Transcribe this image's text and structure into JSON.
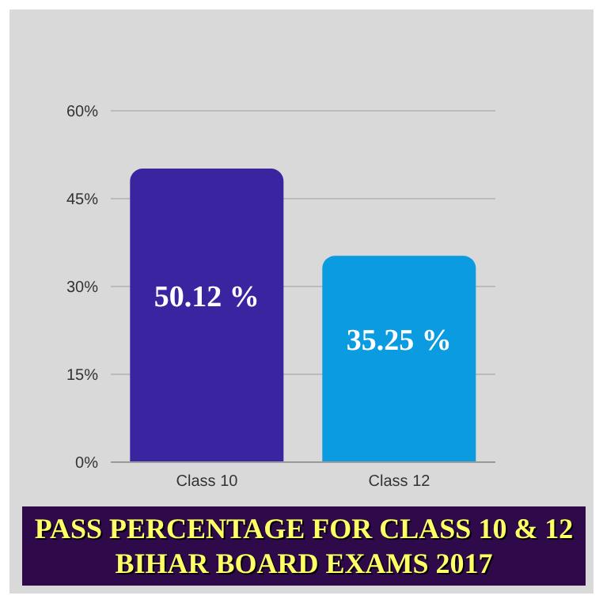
{
  "chart_data": {
    "type": "bar",
    "title": "PASS PERCENTAGE FOR CLASS 10 & 12 BIHAR BOARD EXAMS 2017",
    "categories": [
      "Class 10",
      "Class 12"
    ],
    "values": [
      50.12,
      35.25
    ],
    "colors": [
      "#3b24a0",
      "#0a9be0"
    ],
    "value_labels": [
      "50.12 %",
      "35.25 %"
    ],
    "ylim": [
      0,
      60
    ],
    "yticks": [
      {
        "value": 0,
        "label": "0%"
      },
      {
        "value": 15,
        "label": "15%"
      },
      {
        "value": 30,
        "label": "30%"
      },
      {
        "value": 45,
        "label": "45%"
      },
      {
        "value": 60,
        "label": "60%"
      }
    ],
    "grid": "y"
  }
}
